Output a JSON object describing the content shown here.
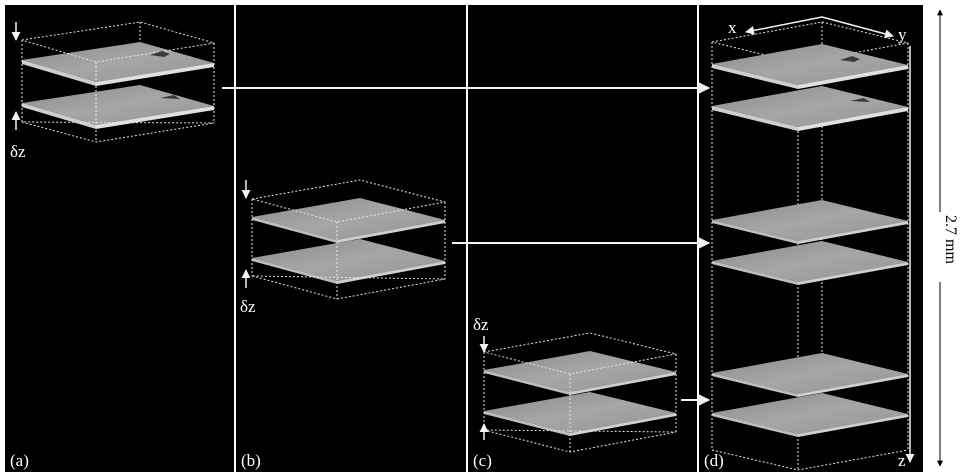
{
  "panels": [
    {
      "label": "(a)",
      "dz_label": "δz"
    },
    {
      "label": "(b)",
      "dz_label": "δz"
    },
    {
      "label": "(c)",
      "dz_label": "δz"
    },
    {
      "label": "(d)"
    }
  ],
  "axes": {
    "x": "x",
    "y": "y",
    "z": "z"
  },
  "height_label": "2.7 mm"
}
